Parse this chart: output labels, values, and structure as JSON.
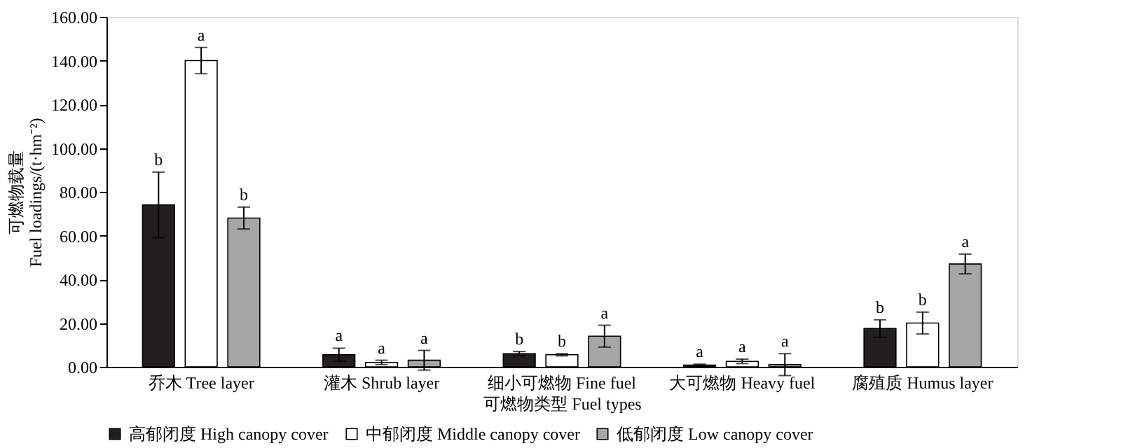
{
  "chart_data": {
    "type": "bar",
    "categories": [
      "乔木 Tree layer",
      "灌木 Shrub layer",
      "细小可燃物 Fine fuel",
      "大可燃物 Heavy fuel",
      "腐殖质 Humus layer"
    ],
    "series": [
      {
        "name": "高郁闭度 High canopy cover",
        "color": "#231f20",
        "values": [
          74,
          5.5,
          6,
          0.8,
          17.5
        ],
        "errors": [
          15,
          3,
          1,
          0.4,
          4
        ]
      },
      {
        "name": "中郁闭度 Middle canopy cover",
        "color": "#ffffff",
        "values": [
          140,
          2,
          5.5,
          2.5,
          20
        ],
        "errors": [
          6,
          1,
          0.5,
          1,
          5
        ]
      },
      {
        "name": "低郁闭度 Low canopy cover",
        "color": "#a6a6a6",
        "values": [
          68,
          3,
          14,
          1,
          47
        ],
        "errors": [
          5,
          4.5,
          5,
          5,
          4.5
        ]
      }
    ],
    "xlabel": "可燃物类型 Fuel types",
    "ylabel": "可燃物载量\nFuel loadings/(t·hm⁻²)",
    "ylim": [
      0,
      160
    ],
    "yticks": [
      {
        "value": 0,
        "label": "0.00"
      },
      {
        "value": 20,
        "label": "20.00"
      },
      {
        "value": 40,
        "label": "40.00"
      },
      {
        "value": 60,
        "label": "60.00"
      },
      {
        "value": 80,
        "label": "80.00"
      },
      {
        "value": 100,
        "label": "100.00"
      },
      {
        "value": 120,
        "label": "120.00"
      },
      {
        "value": 140,
        "label": "140.00"
      },
      {
        "value": 160,
        "label": "160.00"
      }
    ],
    "grid": false,
    "legend": "bottom",
    "annotations": [
      "b",
      "a",
      "b",
      "a",
      "a",
      "a",
      "b",
      "b",
      "a",
      "a",
      "a",
      "a",
      "b",
      "b",
      "a"
    ]
  }
}
